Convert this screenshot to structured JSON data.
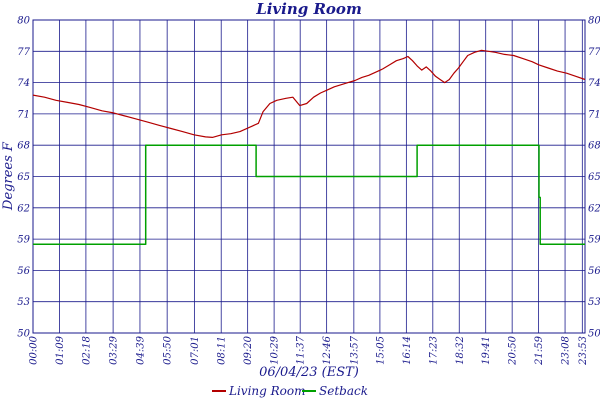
{
  "chart_data": {
    "type": "line",
    "title": "Living Room",
    "xlabel": "06/04/23 (EST)",
    "ylabel": "Degrees F",
    "x_unit": "time of day (hours)",
    "xlim": [
      0,
      24.0
    ],
    "ylim": [
      50,
      80
    ],
    "yticks": [
      50,
      53,
      56,
      59,
      62,
      65,
      68,
      71,
      74,
      77,
      80
    ],
    "xticks": [
      {
        "label": "00:00",
        "t": 0.0
      },
      {
        "label": "01:09",
        "t": 1.15
      },
      {
        "label": "02:18",
        "t": 2.3
      },
      {
        "label": "03:29",
        "t": 3.483
      },
      {
        "label": "04:39",
        "t": 4.65
      },
      {
        "label": "05:50",
        "t": 5.833
      },
      {
        "label": "07:01",
        "t": 7.017
      },
      {
        "label": "08:11",
        "t": 8.183
      },
      {
        "label": "09:20",
        "t": 9.333
      },
      {
        "label": "10:29",
        "t": 10.483
      },
      {
        "label": "11:37",
        "t": 11.617
      },
      {
        "label": "12:46",
        "t": 12.767
      },
      {
        "label": "13:57",
        "t": 13.95
      },
      {
        "label": "15:05",
        "t": 15.083
      },
      {
        "label": "16:14",
        "t": 16.233
      },
      {
        "label": "17:23",
        "t": 17.383
      },
      {
        "label": "18:32",
        "t": 18.533
      },
      {
        "label": "19:41",
        "t": 19.683
      },
      {
        "label": "20:50",
        "t": 20.833
      },
      {
        "label": "21:59",
        "t": 21.983
      },
      {
        "label": "23:08",
        "t": 23.133
      },
      {
        "label": "23:53",
        "t": 23.883
      }
    ],
    "grid": true,
    "legend_position": "bottom",
    "series": [
      {
        "name": "Living Room",
        "color": "#b30000",
        "points": [
          [
            0.0,
            72.8
          ],
          [
            0.5,
            72.6
          ],
          [
            1.0,
            72.3
          ],
          [
            1.5,
            72.1
          ],
          [
            2.0,
            71.9
          ],
          [
            2.5,
            71.6
          ],
          [
            3.0,
            71.3
          ],
          [
            3.5,
            71.1
          ],
          [
            4.0,
            70.8
          ],
          [
            4.5,
            70.5
          ],
          [
            5.0,
            70.2
          ],
          [
            5.5,
            69.9
          ],
          [
            6.0,
            69.6
          ],
          [
            6.5,
            69.3
          ],
          [
            7.0,
            69.0
          ],
          [
            7.5,
            68.8
          ],
          [
            7.8,
            68.75
          ],
          [
            8.2,
            69.0
          ],
          [
            8.6,
            69.1
          ],
          [
            9.0,
            69.3
          ],
          [
            9.5,
            69.8
          ],
          [
            9.8,
            70.1
          ],
          [
            10.0,
            71.2
          ],
          [
            10.3,
            72.0
          ],
          [
            10.6,
            72.3
          ],
          [
            11.0,
            72.5
          ],
          [
            11.3,
            72.6
          ],
          [
            11.6,
            71.8
          ],
          [
            11.9,
            72.0
          ],
          [
            12.2,
            72.6
          ],
          [
            12.5,
            73.0
          ],
          [
            12.8,
            73.3
          ],
          [
            13.1,
            73.6
          ],
          [
            13.4,
            73.8
          ],
          [
            13.7,
            74.0
          ],
          [
            14.0,
            74.2
          ],
          [
            14.3,
            74.5
          ],
          [
            14.6,
            74.7
          ],
          [
            14.9,
            75.0
          ],
          [
            15.2,
            75.3
          ],
          [
            15.5,
            75.7
          ],
          [
            15.8,
            76.1
          ],
          [
            16.1,
            76.3
          ],
          [
            16.3,
            76.5
          ],
          [
            16.5,
            76.1
          ],
          [
            16.7,
            75.6
          ],
          [
            16.9,
            75.2
          ],
          [
            17.1,
            75.5
          ],
          [
            17.3,
            75.1
          ],
          [
            17.5,
            74.6
          ],
          [
            17.7,
            74.3
          ],
          [
            17.9,
            74.0
          ],
          [
            18.1,
            74.3
          ],
          [
            18.3,
            74.9
          ],
          [
            18.5,
            75.4
          ],
          [
            18.7,
            76.0
          ],
          [
            18.9,
            76.6
          ],
          [
            19.2,
            76.9
          ],
          [
            19.5,
            77.1
          ],
          [
            19.8,
            77.0
          ],
          [
            20.1,
            76.9
          ],
          [
            20.5,
            76.7
          ],
          [
            20.9,
            76.6
          ],
          [
            21.3,
            76.3
          ],
          [
            21.7,
            76.0
          ],
          [
            22.0,
            75.7
          ],
          [
            22.4,
            75.4
          ],
          [
            22.8,
            75.1
          ],
          [
            23.2,
            74.9
          ],
          [
            23.6,
            74.6
          ],
          [
            24.0,
            74.3
          ]
        ]
      },
      {
        "name": "Setback",
        "color": "#00a000",
        "points": [
          [
            0.0,
            58.5
          ],
          [
            4.9,
            58.5
          ],
          [
            4.9,
            68.0
          ],
          [
            9.7,
            68.0
          ],
          [
            9.7,
            65.0
          ],
          [
            16.7,
            65.0
          ],
          [
            16.7,
            68.0
          ],
          [
            22.0,
            68.0
          ],
          [
            22.0,
            63.0
          ],
          [
            22.05,
            63.0
          ],
          [
            22.05,
            58.5
          ],
          [
            24.0,
            58.5
          ]
        ]
      }
    ]
  }
}
